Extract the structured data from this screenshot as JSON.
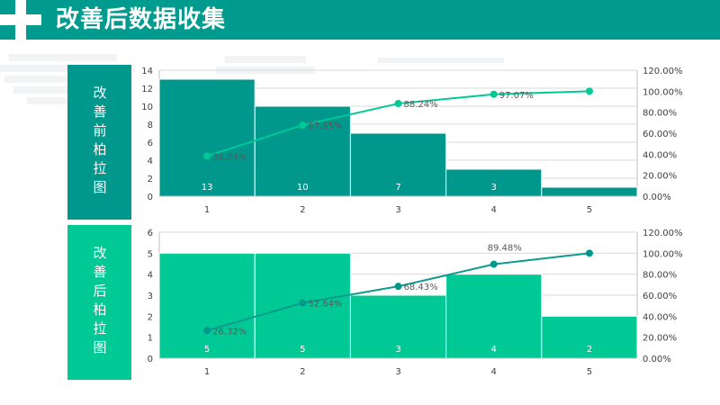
{
  "header": {
    "title": "改善后数据收集",
    "bg_color": "#009b8f"
  },
  "panels": [
    {
      "label": "改善前柏拉图",
      "color": "#00978c"
    },
    {
      "label": "改善后柏拉图",
      "color": "#00c995"
    }
  ],
  "chart_data": [
    {
      "type": "bar",
      "categories": [
        "1",
        "2",
        "3",
        "4",
        "5"
      ],
      "series": [
        {
          "values": [
            13,
            10,
            7,
            3,
            1
          ],
          "value_labels": [
            "13",
            "10",
            "7",
            "3",
            ""
          ],
          "color": "#00978c"
        },
        {
          "type": "line",
          "axis": "right",
          "values": [
            38.24,
            67.65,
            88.24,
            97.07,
            100.0
          ],
          "value_labels": [
            "38.24%",
            "67.65%",
            "88.24%",
            "97.07%",
            ""
          ],
          "color": "#00c995"
        }
      ],
      "y_left": {
        "min": 0,
        "max": 14,
        "step": 2,
        "ticks": [
          "0",
          "2",
          "4",
          "6",
          "8",
          "10",
          "12",
          "14"
        ]
      },
      "y_right": {
        "min": 0,
        "max": 120,
        "step": 20,
        "ticks": [
          "0.00%",
          "20.00%",
          "40.00%",
          "60.00%",
          "80.00%",
          "100.00%",
          "120.00%"
        ]
      },
      "grid": true,
      "line_marker_fill": "#00c995"
    },
    {
      "type": "bar",
      "categories": [
        "1",
        "2",
        "3",
        "4",
        "5"
      ],
      "series": [
        {
          "values": [
            5,
            5,
            3,
            4,
            2
          ],
          "value_labels": [
            "5",
            "5",
            "3",
            "4",
            "2"
          ],
          "color": "#00c995"
        },
        {
          "type": "line",
          "axis": "right",
          "values": [
            26.32,
            52.64,
            68.43,
            89.48,
            100.0
          ],
          "value_labels": [
            "26.32%",
            "52.64%",
            "68.43%",
            "89.48%",
            ""
          ],
          "color": "#0c9b8f"
        }
      ],
      "y_left": {
        "min": 0,
        "max": 6,
        "step": 1,
        "ticks": [
          "0",
          "1",
          "2",
          "3",
          "4",
          "5",
          "6"
        ]
      },
      "y_right": {
        "min": 0,
        "max": 120,
        "step": 20,
        "ticks": [
          "0.00%",
          "20.00%",
          "40.00%",
          "60.00%",
          "80.00%",
          "100.00%",
          "120.00%"
        ]
      },
      "grid": true,
      "line_marker_fill": "#00978c"
    }
  ]
}
